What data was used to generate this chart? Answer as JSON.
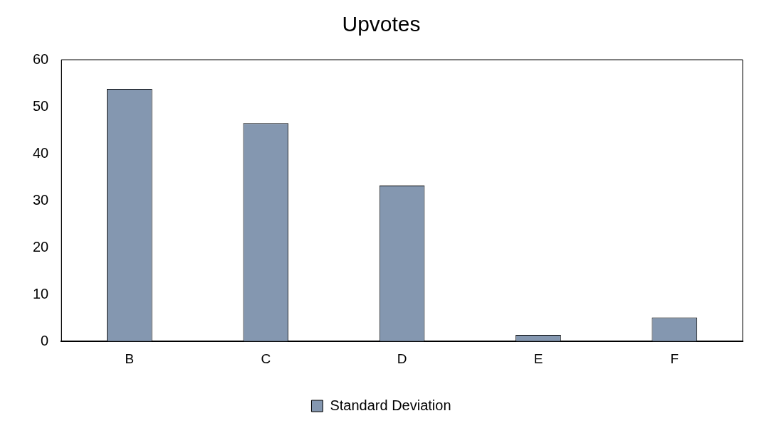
{
  "chart_data": {
    "type": "bar",
    "title": "Upvotes",
    "categories": [
      "B",
      "C",
      "D",
      "E",
      "F"
    ],
    "series": [
      {
        "name": "Standard Deviation",
        "color": "#8497b0",
        "values": [
          53.8,
          46.5,
          33.2,
          1.4,
          5.1
        ]
      }
    ],
    "ylim": [
      0,
      60
    ],
    "yticks": [
      0,
      10,
      20,
      30,
      40,
      50,
      60
    ],
    "grid": false,
    "legend": "bottom"
  }
}
